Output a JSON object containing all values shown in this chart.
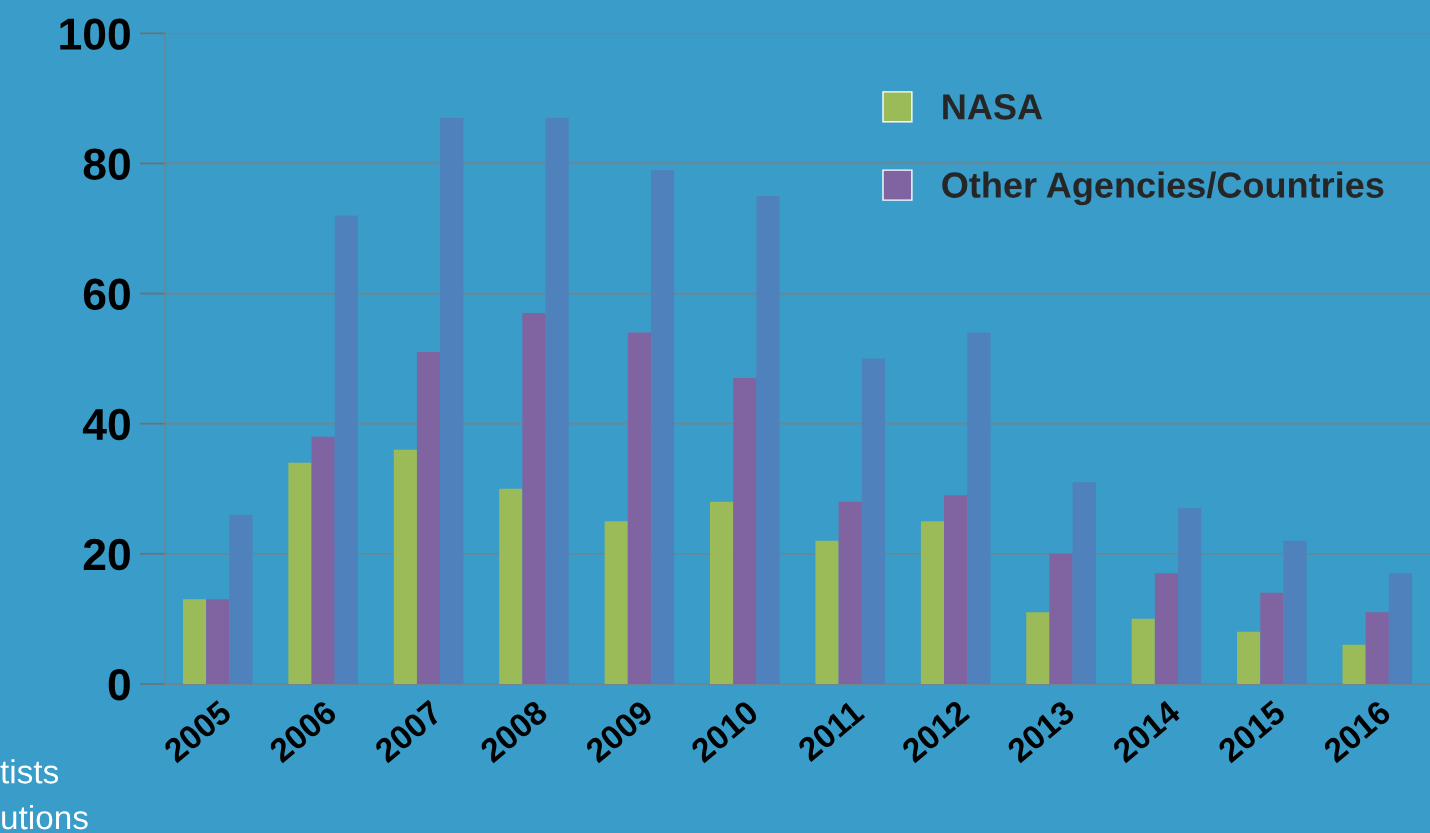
{
  "chart_data": {
    "type": "bar",
    "categories": [
      "2005",
      "2006",
      "2007",
      "2008",
      "2009",
      "2010",
      "2011",
      "2012",
      "2013",
      "2014",
      "2015",
      "2016"
    ],
    "series": [
      {
        "name": "NASA",
        "color": "#9bbb59",
        "values": [
          13,
          34,
          36,
          30,
          25,
          28,
          22,
          25,
          11,
          10,
          8,
          6
        ]
      },
      {
        "name": "Other Agencies/Countries",
        "color": "#8064a2",
        "values": [
          13,
          38,
          51,
          57,
          54,
          47,
          28,
          29,
          20,
          17,
          14,
          11
        ]
      },
      {
        "color": "#4f81bd",
        "values": [
          26,
          72,
          87,
          87,
          79,
          75,
          50,
          54,
          31,
          27,
          22,
          17
        ]
      }
    ],
    "ylim": [
      0,
      100
    ],
    "yticks": [
      0,
      20,
      40,
      60,
      80,
      100
    ],
    "grid": "y",
    "legend": "top right",
    "annotations": [
      "tists",
      "utions"
    ]
  }
}
